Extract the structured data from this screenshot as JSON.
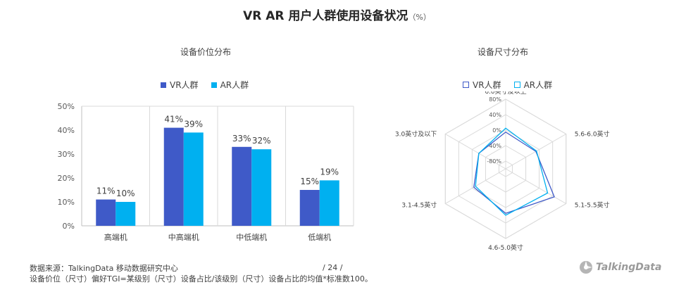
{
  "page": {
    "title": "VR  AR  用户人群使用设备状况",
    "title_unit": "（%）",
    "source": "数据来源：TalkingData 移动数据研究中心",
    "note": "设备价位（尺寸）偏好TGI=某级别（尺寸）设备占比/该级别（尺寸）设备占比的均值*标准数100。",
    "page_number": "/  24  /",
    "logo_text": "TalkingData",
    "logo_icon": "talkingdata-logo-icon"
  },
  "colors": {
    "vr": "#3F5AC8",
    "ar": "#00B0F0",
    "grid": "#D9D9D9",
    "text": "#404040"
  },
  "chart_data": [
    {
      "type": "bar",
      "title": "设备价位分布",
      "categories": [
        "高端机",
        "中高端机",
        "中低端机",
        "低端机"
      ],
      "series": [
        {
          "name": "VR人群",
          "values": [
            11,
            41,
            33,
            15
          ],
          "labels": [
            "11%",
            "41%",
            "33%",
            "15%"
          ]
        },
        {
          "name": "AR人群",
          "values": [
            10,
            39,
            32,
            19
          ],
          "labels": [
            "10%",
            "39%",
            "32%",
            "19%"
          ]
        }
      ],
      "yticks": [
        "0%",
        "10%",
        "20%",
        "30%",
        "40%",
        "50%"
      ],
      "ylim": [
        0,
        50
      ],
      "grid": false,
      "legend": "top"
    },
    {
      "type": "radar",
      "title": "设备尺寸分布",
      "categories": [
        "6.0英寸及以上",
        "5.6-6.0英寸",
        "5.1-5.5英寸",
        "4.6-5.0英寸",
        "3.1-4.5英寸",
        "3.0英寸及以下"
      ],
      "series": [
        {
          "name": "VR人群",
          "values": [
            -5,
            -10,
            45,
            15,
            -5,
            -20
          ]
        },
        {
          "name": "AR人群",
          "values": [
            5,
            -8,
            25,
            20,
            -10,
            -20
          ]
        }
      ],
      "rticks": [
        "80%",
        "40%",
        "0%",
        "-40%",
        "-80%"
      ],
      "rlim": [
        -100,
        80
      ],
      "legend": "top"
    }
  ]
}
